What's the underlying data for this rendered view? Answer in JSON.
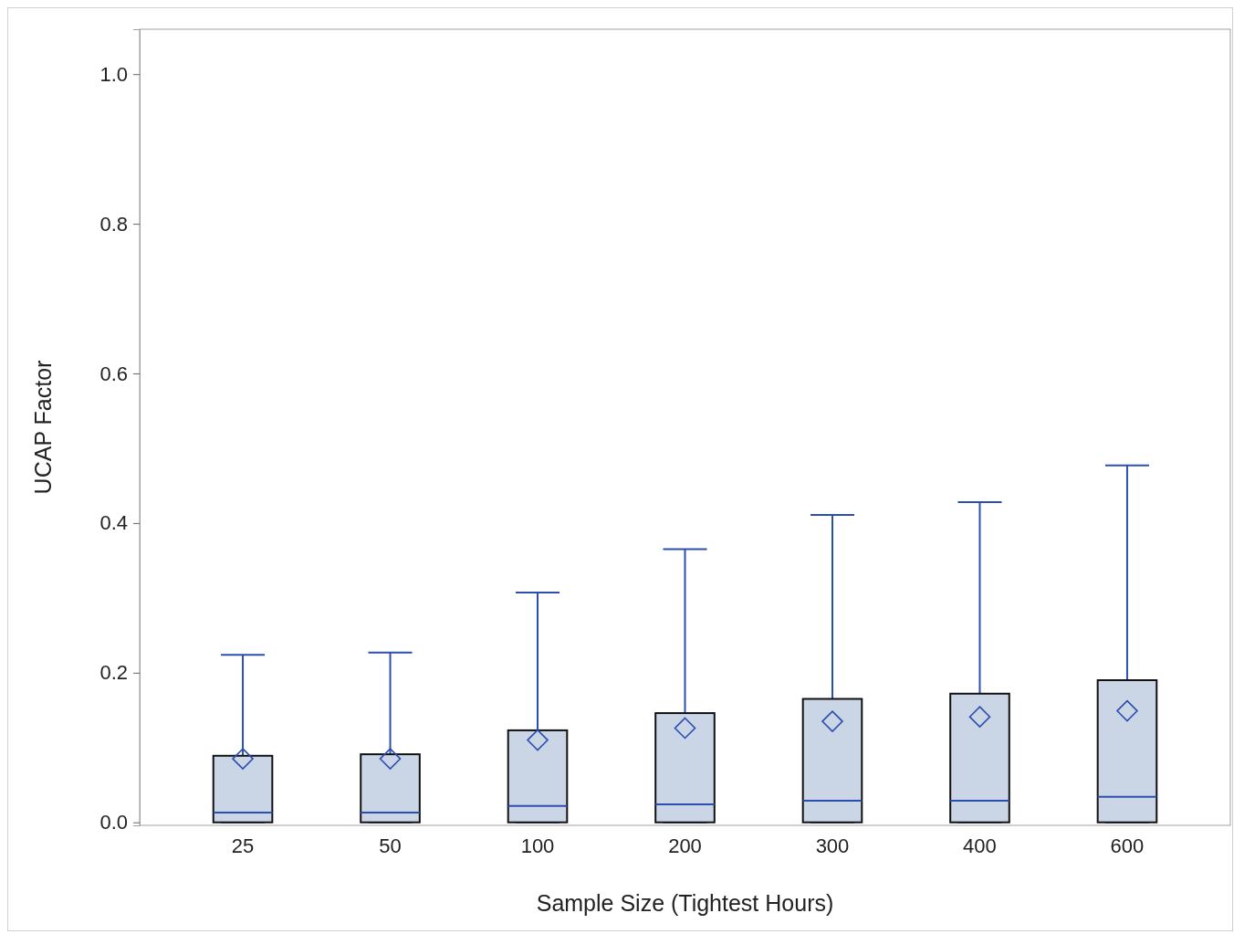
{
  "chart_data": {
    "type": "box",
    "xlabel": "Sample Size (Tightest Hours)",
    "ylabel": "UCAP Factor",
    "categories": [
      "25",
      "50",
      "100",
      "200",
      "300",
      "400",
      "600"
    ],
    "color": "#cad5e6",
    "boxes": [
      {
        "low": 0,
        "q1": 0,
        "median": 0.013,
        "q3": 0.089,
        "high": 0.224,
        "mean": 0.085
      },
      {
        "low": 0,
        "q1": 0,
        "median": 0.013,
        "q3": 0.091,
        "high": 0.227,
        "mean": 0.085
      },
      {
        "low": 0,
        "q1": 0,
        "median": 0.022,
        "q3": 0.123,
        "high": 0.307,
        "mean": 0.11
      },
      {
        "low": 0,
        "q1": 0,
        "median": 0.024,
        "q3": 0.146,
        "high": 0.365,
        "mean": 0.126
      },
      {
        "low": 0,
        "q1": 0,
        "median": 0.029,
        "q3": 0.165,
        "high": 0.411,
        "mean": 0.135
      },
      {
        "low": 0,
        "q1": 0,
        "median": 0.029,
        "q3": 0.172,
        "high": 0.428,
        "mean": 0.141
      },
      {
        "low": 0,
        "q1": 0,
        "median": 0.034,
        "q3": 0.19,
        "high": 0.477,
        "mean": 0.149
      }
    ],
    "ylim": [
      -0.004,
      1.06
    ],
    "yticks": [
      {
        "value": 0,
        "label": "0.0"
      },
      {
        "value": 0.2,
        "label": "0.2"
      },
      {
        "value": 0.4,
        "label": "0.4"
      },
      {
        "value": 0.6,
        "label": "0.6"
      },
      {
        "value": 0.8,
        "label": "0.8"
      },
      {
        "value": 1,
        "label": "1.0"
      }
    ]
  }
}
